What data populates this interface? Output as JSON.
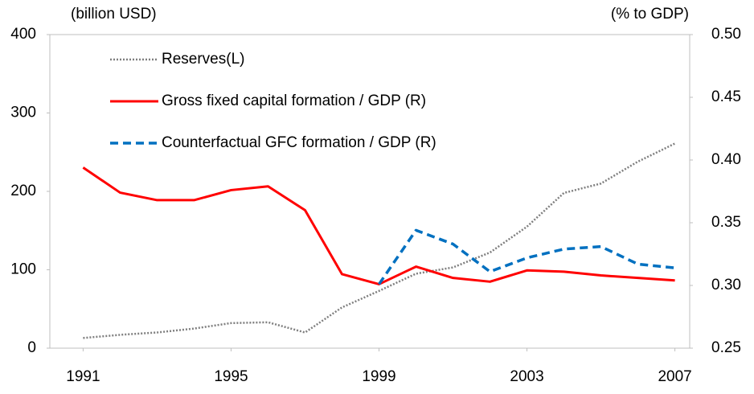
{
  "chart_data": {
    "type": "line",
    "y_axis_label": "(billion USD)",
    "y2_axis_label": "(% to GDP)",
    "x": [
      1991,
      1992,
      1993,
      1994,
      1995,
      1996,
      1997,
      1998,
      1999,
      2000,
      2001,
      2002,
      2003,
      2004,
      2005,
      2006,
      2007
    ],
    "xlim": [
      1990.1,
      2007.4
    ],
    "xticks": [
      1991,
      1995,
      1999,
      2003,
      2007
    ],
    "ylim": [
      0,
      400
    ],
    "yticks": [
      0,
      100,
      200,
      300,
      400
    ],
    "y2lim": [
      0.25,
      0.5
    ],
    "y2ticks": [
      0.25,
      {
        "value": 0.3,
        "label": "0.30"
      },
      0.35,
      {
        "value": 0.4,
        "label": "0.40"
      },
      0.45,
      {
        "value": 0.5,
        "label": "0.50"
      }
    ],
    "legend": "top-left",
    "series": [
      {
        "name": "Reserves(L)",
        "color": "#7f7f7f",
        "style": "dotted",
        "values": [
          13,
          17,
          20,
          25,
          32,
          33,
          20,
          52,
          73,
          95,
          103,
          122,
          155,
          198,
          210,
          238,
          261
        ]
      },
      {
        "name": "Gross fixed capital formation / GDP (R)",
        "color": "#ff0000",
        "style": "solid",
        "axis": "y2",
        "values": [
          0.394,
          0.374,
          0.368,
          0.368,
          0.376,
          0.379,
          0.36,
          0.309,
          0.301,
          0.315,
          0.306,
          0.303,
          0.312,
          0.311,
          0.308,
          0.306,
          0.304
        ]
      },
      {
        "name": "Counterfactual GFC formation / GDP (R)",
        "color": "#0070c0",
        "style": "dashed",
        "axis": "y2",
        "values": [
          null,
          null,
          null,
          null,
          null,
          null,
          null,
          null,
          0.301,
          0.344,
          0.333,
          0.311,
          0.322,
          0.329,
          0.331,
          0.317,
          0.314
        ]
      }
    ]
  }
}
